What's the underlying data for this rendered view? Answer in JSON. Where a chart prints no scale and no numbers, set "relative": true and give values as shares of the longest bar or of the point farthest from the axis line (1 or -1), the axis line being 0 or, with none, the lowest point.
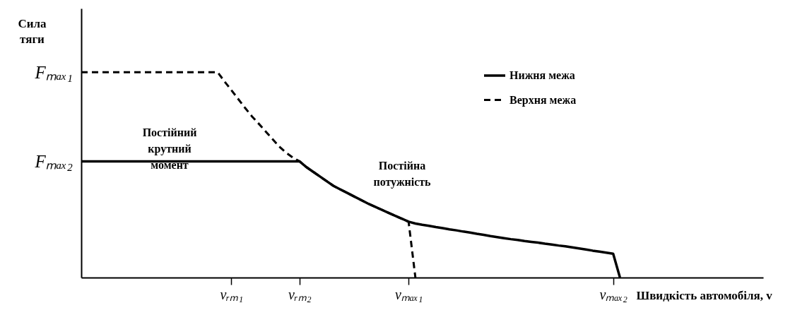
{
  "chart_data": {
    "type": "line",
    "relative": true,
    "xlabel": "Швидкість автомобіля, v",
    "ylabel": "Сила\nтяги",
    "categories": [
      null,
      null,
      null,
      null,
      null,
      null,
      null,
      null,
      null,
      null,
      null,
      null,
      null,
      null,
      null,
      null,
      null,
      null,
      null,
      null,
      null,
      null,
      "vᵣₘ₁",
      null,
      null,
      null,
      null,
      null,
      null,
      null,
      null,
      null,
      "vᵣₘ₂",
      null,
      null,
      null,
      null,
      null,
      null,
      null,
      null,
      null,
      null,
      null,
      null,
      null,
      null,
      null,
      "vₘₐₓ₁",
      null,
      null,
      null,
      null,
      null,
      null,
      null,
      null,
      null,
      null,
      null,
      null,
      null,
      null,
      null,
      null,
      null,
      null,
      null,
      null,
      null,
      null,
      null,
      null,
      null,
      null,
      null,
      null,
      null,
      "vₘₐₓ₂",
      null,
      null,
      null,
      null,
      null,
      null,
      null,
      null,
      null,
      null,
      null,
      null,
      null,
      null,
      null,
      null,
      null,
      null,
      null,
      null,
      null,
      null
    ],
    "series": [
      {
        "name": "Нижня межа",
        "color": "#000000",
        "line_style": "solid",
        "values": [
          0.566,
          0.566,
          0.566,
          0.566,
          0.566,
          0.566,
          0.566,
          0.566,
          0.566,
          0.566,
          0.566,
          0.566,
          0.566,
          0.566,
          0.566,
          0.566,
          0.566,
          0.566,
          0.566,
          0.566,
          0.566,
          0.566,
          0.566,
          0.566,
          0.566,
          0.566,
          0.566,
          0.566,
          0.566,
          0.566,
          0.566,
          0.566,
          0.566,
          0.538,
          0.515,
          0.492,
          0.469,
          0.446,
          0.429,
          0.412,
          0.395,
          0.378,
          0.361,
          0.346,
          0.331,
          0.316,
          0.301,
          0.287,
          0.272,
          0.263,
          0.257,
          0.252,
          0.246,
          0.241,
          0.235,
          0.23,
          0.224,
          0.219,
          0.213,
          0.208,
          0.202,
          0.197,
          0.192,
          0.187,
          0.183,
          0.178,
          0.174,
          0.17,
          0.165,
          0.161,
          0.156,
          0.152,
          0.147,
          0.142,
          0.137,
          0.131,
          0.126,
          0.121,
          0.116,
          0,
          null,
          null,
          null,
          null,
          null,
          null,
          null,
          null,
          null,
          null,
          null,
          null,
          null,
          null,
          null,
          null,
          null,
          null,
          null,
          null,
          null
        ]
      },
      {
        "name": "Верхня межа",
        "color": "#000000",
        "line_style": "dashed",
        "values": [
          1,
          1,
          1,
          1,
          1,
          1,
          1,
          1,
          1,
          1,
          1,
          1,
          1,
          1,
          1,
          1,
          1,
          1,
          1,
          1,
          1,
          0.955,
          0.913,
          0.87,
          0.827,
          0.786,
          0.75,
          0.713,
          0.676,
          0.639,
          0.609,
          0.585,
          0.566,
          0.538,
          0.515,
          0.492,
          0.469,
          0.446,
          0.429,
          0.412,
          0.395,
          0.378,
          0.361,
          0.346,
          0.331,
          0.316,
          0.301,
          0.287,
          0.272,
          0,
          null,
          null,
          null,
          null,
          null,
          null,
          null,
          null,
          null,
          null,
          null,
          null,
          null,
          null,
          null,
          null,
          null,
          null,
          null,
          null,
          null,
          null,
          null,
          null,
          null,
          null,
          null,
          null,
          null,
          null,
          null,
          null,
          null,
          null,
          null,
          null,
          null,
          null,
          null,
          null,
          null,
          null,
          null,
          null,
          null,
          null,
          null,
          null,
          null,
          null,
          null
        ]
      }
    ],
    "annotations": [
      "Fₘₐₓ₁",
      "Fₘₐₓ₂",
      "Постійний\nкрутний\nмомент",
      "Постійна\nпотужність"
    ],
    "legend": "top right",
    "marker": "none"
  }
}
